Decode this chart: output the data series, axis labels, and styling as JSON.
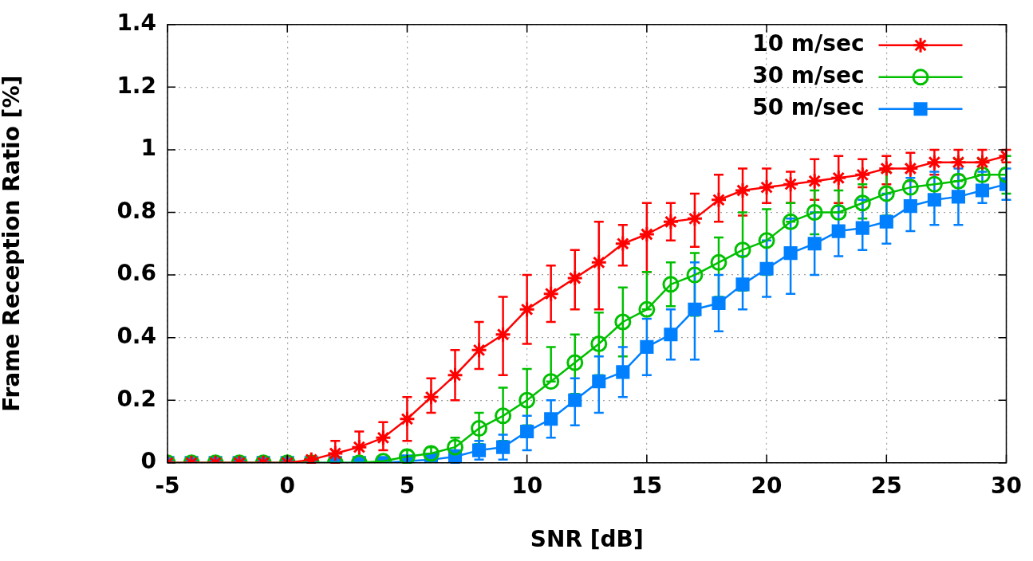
{
  "chart_data": {
    "type": "line",
    "xlabel": "SNR [dB]",
    "ylabel": "Frame Reception Ratio [%]",
    "x": [
      -5,
      -4,
      -3,
      -2,
      -1,
      0,
      1,
      2,
      3,
      4,
      5,
      6,
      7,
      8,
      9,
      10,
      11,
      12,
      13,
      14,
      15,
      16,
      17,
      18,
      19,
      20,
      21,
      22,
      23,
      24,
      25,
      26,
      27,
      28,
      29,
      30
    ],
    "xlim": [
      -5,
      30
    ],
    "xticks": [
      -5,
      0,
      5,
      10,
      15,
      20,
      25,
      30
    ],
    "ylim": [
      0,
      1.4
    ],
    "yticks": [
      0,
      0.2,
      0.4,
      0.6,
      0.8,
      1,
      1.2,
      1.4
    ],
    "grid": true,
    "legend": "top right",
    "line_style": "solid",
    "series": [
      {
        "name": "10 m/sec",
        "color": "#ff0000",
        "marker": "cross",
        "values": [
          0,
          0,
          0,
          0,
          0,
          0,
          0.01,
          0.03,
          0.05,
          0.08,
          0.14,
          0.21,
          0.28,
          0.36,
          0.41,
          0.49,
          0.54,
          0.59,
          0.64,
          0.7,
          0.73,
          0.77,
          0.78,
          0.84,
          0.87,
          0.88,
          0.89,
          0.9,
          0.91,
          0.92,
          0.94,
          0.94,
          0.96,
          0.96,
          0.96,
          0.98
        ],
        "errors": [
          null,
          null,
          null,
          null,
          null,
          null,
          [
            0,
            0.02
          ],
          [
            0,
            0.07
          ],
          [
            0.01,
            0.1
          ],
          [
            0.04,
            0.13
          ],
          [
            0.07,
            0.21
          ],
          [
            0.16,
            0.27
          ],
          [
            0.2,
            0.36
          ],
          [
            0.3,
            0.45
          ],
          [
            0.28,
            0.53
          ],
          [
            0.38,
            0.6
          ],
          [
            0.45,
            0.63
          ],
          [
            0.49,
            0.68
          ],
          [
            0.49,
            0.77
          ],
          [
            0.63,
            0.76
          ],
          [
            0.61,
            0.83
          ],
          [
            0.71,
            0.83
          ],
          [
            0.69,
            0.86
          ],
          [
            0.77,
            0.92
          ],
          [
            0.79,
            0.94
          ],
          [
            0.83,
            0.94
          ],
          [
            0.83,
            0.93
          ],
          [
            0.84,
            0.97
          ],
          [
            0.83,
            0.98
          ],
          [
            0.88,
            0.97
          ],
          [
            0.89,
            0.98
          ],
          [
            0.9,
            0.99
          ],
          [
            0.92,
            1
          ],
          [
            0.92,
            1
          ],
          [
            0.92,
            1
          ],
          [
            0.96,
            1
          ]
        ]
      },
      {
        "name": "30 m/sec",
        "color": "#00c000",
        "marker": "circle",
        "values": [
          0,
          0,
          0,
          0,
          0,
          0,
          0,
          0,
          0,
          0.005,
          0.02,
          0.03,
          0.05,
          0.11,
          0.15,
          0.2,
          0.26,
          0.32,
          0.38,
          0.45,
          0.49,
          0.57,
          0.6,
          0.64,
          0.68,
          0.71,
          0.77,
          0.8,
          0.8,
          0.83,
          0.86,
          0.88,
          0.89,
          0.9,
          0.92,
          0.92
        ],
        "errors": [
          null,
          null,
          null,
          null,
          null,
          null,
          null,
          null,
          null,
          null,
          [
            0,
            0.04
          ],
          [
            0.01,
            0.05
          ],
          [
            0.02,
            0.08
          ],
          [
            0.06,
            0.16
          ],
          [
            0.07,
            0.24
          ],
          [
            0.12,
            0.3
          ],
          [
            0.26,
            0.37
          ],
          [
            0.22,
            0.41
          ],
          [
            0.28,
            0.48
          ],
          [
            0.34,
            0.56
          ],
          [
            0.49,
            0.61
          ],
          [
            0.5,
            0.64
          ],
          [
            0.47,
            0.67
          ],
          [
            0.53,
            0.72
          ],
          [
            0.55,
            0.8
          ],
          [
            0.6,
            0.81
          ],
          [
            0.77,
            0.83
          ],
          [
            0.73,
            0.87
          ],
          [
            0.8,
            0.87
          ],
          [
            0.78,
            0.89
          ],
          [
            0.79,
            0.93
          ],
          null,
          null,
          [
            0.9,
            0.97
          ],
          [
            0.92,
            0.97
          ],
          [
            0.86,
            0.98
          ]
        ]
      },
      {
        "name": "50 m/sec",
        "color": "#0080ff",
        "marker": "square",
        "values": [
          0,
          0,
          0,
          0,
          0,
          0,
          0,
          0,
          0,
          0,
          0.005,
          0.01,
          0.02,
          0.04,
          0.05,
          0.1,
          0.14,
          0.2,
          0.26,
          0.29,
          0.37,
          0.41,
          0.49,
          0.51,
          0.57,
          0.62,
          0.67,
          0.7,
          0.74,
          0.75,
          0.77,
          0.82,
          0.84,
          0.85,
          0.87,
          0.89
        ],
        "errors": [
          null,
          null,
          null,
          null,
          null,
          null,
          null,
          null,
          null,
          null,
          null,
          null,
          [
            0,
            0.04
          ],
          [
            0.01,
            0.07
          ],
          [
            0.01,
            0.09
          ],
          [
            0.04,
            0.15
          ],
          [
            0.08,
            0.2
          ],
          [
            0.12,
            0.27
          ],
          [
            0.16,
            0.34
          ],
          [
            0.21,
            0.37
          ],
          [
            0.28,
            0.46
          ],
          [
            0.33,
            0.49
          ],
          [
            0.33,
            0.64
          ],
          [
            0.42,
            0.6
          ],
          [
            0.49,
            0.66
          ],
          [
            0.53,
            0.71
          ],
          [
            0.54,
            0.78
          ],
          [
            0.6,
            0.8
          ],
          [
            0.66,
            0.82
          ],
          [
            0.68,
            0.84
          ],
          [
            0.7,
            0.86
          ],
          [
            0.74,
            0.91
          ],
          [
            0.76,
            0.93
          ],
          [
            0.76,
            0.94
          ],
          [
            0.83,
            0.93
          ],
          [
            0.84,
            0.94
          ]
        ]
      }
    ]
  }
}
